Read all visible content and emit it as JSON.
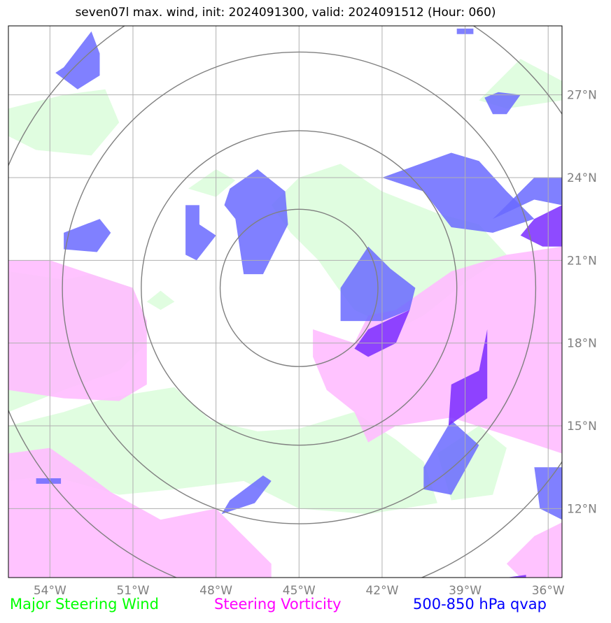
{
  "title": "seven07l max. wind, init: 2024091300, valid: 2024091512 (Hour: 060)",
  "legend": [
    {
      "label": "Major Steering Wind",
      "color": "#00ff00"
    },
    {
      "label": "Steering Vorticity",
      "color": "#ff00ff"
    },
    {
      "label": "500-850 hPa qvap",
      "color": "#0000ff"
    }
  ],
  "chart_data": {
    "type": "map",
    "xlim": [
      -55.5,
      -35.5
    ],
    "ylim": [
      9.5,
      29.5
    ],
    "x_ticks": [
      -54,
      -51,
      -48,
      -45,
      -42,
      -39,
      -36
    ],
    "x_tick_labels": [
      "54°W",
      "51°W",
      "48°W",
      "45°W",
      "42°W",
      "39°W",
      "36°W"
    ],
    "y_ticks": [
      12,
      15,
      18,
      21,
      24,
      27
    ],
    "y_tick_labels": [
      "12°N",
      "15°N",
      "18°N",
      "21°N",
      "24°N",
      "27°N"
    ],
    "grid": true,
    "range_rings": {
      "center": [
        -45.0,
        20.0
      ],
      "radii_deg": [
        2.85,
        5.7,
        8.55,
        11.4
      ]
    },
    "colors": {
      "wind_fill": "#e0fde0",
      "vorticity_fill": "#ffbdff",
      "qvap_fill": "#6a6aff",
      "qvap_dark": "#7a2cff",
      "ring": "#808080",
      "grid": "#b0b0b0",
      "tick_label": "#808080"
    },
    "series": [
      {
        "name": "Major Steering Wind",
        "regions": [
          [
            [
              -55.5,
              26.5
            ],
            [
              -53.5,
              27
            ],
            [
              -52,
              27.2
            ],
            [
              -51.5,
              26
            ],
            [
              -52.5,
              24.8
            ],
            [
              -54.5,
              25
            ],
            [
              -55.5,
              25.5
            ]
          ],
          [
            [
              -38.5,
              26.8
            ],
            [
              -37,
              28.3
            ],
            [
              -35.5,
              27.5
            ],
            [
              -35.5,
              26.8
            ],
            [
              -37.5,
              26.5
            ]
          ],
          [
            [
              -46,
              23
            ],
            [
              -45,
              24
            ],
            [
              -43.5,
              24.5
            ],
            [
              -42,
              23.5
            ],
            [
              -40,
              22.7
            ],
            [
              -38.5,
              22.3
            ],
            [
              -37.5,
              21.2
            ],
            [
              -39,
              20.2
            ],
            [
              -40.5,
              19
            ],
            [
              -41.5,
              18.5
            ],
            [
              -43,
              19.2
            ],
            [
              -43.6,
              20
            ],
            [
              -44.3,
              21
            ],
            [
              -45.3,
              22
            ]
          ],
          [
            [
              -49,
              23.6
            ],
            [
              -48,
              24.3
            ],
            [
              -47.3,
              23.9
            ],
            [
              -48,
              23.3
            ]
          ],
          [
            [
              -50.5,
              19.5
            ],
            [
              -50,
              19.9
            ],
            [
              -49.5,
              19.5
            ],
            [
              -50,
              19.2
            ]
          ],
          [
            [
              -55.5,
              20.6
            ],
            [
              -53.5,
              20.3
            ],
            [
              -52.5,
              20.5
            ],
            [
              -51,
              20
            ],
            [
              -50.5,
              18
            ],
            [
              -51.5,
              17
            ],
            [
              -53.5,
              16.3
            ],
            [
              -55.5,
              15.5
            ]
          ],
          [
            [
              -55.5,
              15
            ],
            [
              -53.5,
              15.5
            ],
            [
              -52,
              16
            ],
            [
              -49.5,
              16.4
            ],
            [
              -48.2,
              15.2
            ],
            [
              -46.5,
              14.8
            ],
            [
              -45,
              14.9
            ],
            [
              -43,
              15.5
            ],
            [
              -41.5,
              14.5
            ],
            [
              -40.5,
              13.7
            ],
            [
              -40,
              12.2
            ],
            [
              -42.5,
              11.8
            ],
            [
              -45,
              12
            ],
            [
              -47,
              13
            ],
            [
              -49.5,
              12.7
            ],
            [
              -51.5,
              12.5
            ],
            [
              -54,
              13.2
            ],
            [
              -55.5,
              13
            ]
          ],
          [
            [
              -40,
              14
            ],
            [
              -38.5,
              15
            ],
            [
              -37.5,
              14.2
            ],
            [
              -38,
              12.5
            ],
            [
              -39.5,
              12.3
            ]
          ]
        ]
      },
      {
        "name": "Steering Vorticity",
        "regions": [
          [
            [
              -55.5,
              21
            ],
            [
              -54,
              21
            ],
            [
              -52.5,
              20.5
            ],
            [
              -51,
              20
            ],
            [
              -50.5,
              18.8
            ],
            [
              -50.5,
              16.5
            ],
            [
              -51.5,
              15.9
            ],
            [
              -53.5,
              16
            ],
            [
              -55.5,
              16.3
            ]
          ],
          [
            [
              -55.5,
              14
            ],
            [
              -54,
              14.2
            ],
            [
              -53,
              13.5
            ],
            [
              -51.8,
              12.6
            ],
            [
              -50,
              11.6
            ],
            [
              -48,
              12
            ],
            [
              -47,
              11
            ],
            [
              -46,
              10
            ],
            [
              -46,
              9.5
            ],
            [
              -55.5,
              9.5
            ]
          ],
          [
            [
              -44.5,
              18.5
            ],
            [
              -43,
              18
            ],
            [
              -42.5,
              19
            ],
            [
              -41.5,
              19.2
            ],
            [
              -39.5,
              20.6
            ],
            [
              -37.5,
              21.2
            ],
            [
              -35.5,
              21.5
            ],
            [
              -35.5,
              14
            ],
            [
              -37,
              14.5
            ],
            [
              -39.5,
              15.3
            ],
            [
              -41.5,
              15
            ],
            [
              -42.5,
              14.4
            ],
            [
              -43,
              15.5
            ],
            [
              -44,
              16.3
            ],
            [
              -44.5,
              17.5
            ]
          ],
          [
            [
              -37.5,
              10
            ],
            [
              -36.5,
              11
            ],
            [
              -35.5,
              11.5
            ],
            [
              -35.5,
              9.5
            ],
            [
              -37,
              9.5
            ]
          ]
        ]
      },
      {
        "name": "500-850 hPa qvap",
        "regions": [
          [
            [
              -53.5,
              28
            ],
            [
              -52.5,
              29.3
            ],
            [
              -52.2,
              28.5
            ],
            [
              -52.2,
              27.7
            ],
            [
              -53,
              27.2
            ],
            [
              -53.8,
              27.8
            ]
          ],
          [
            [
              -38.3,
              26.9
            ],
            [
              -37.8,
              27.1
            ],
            [
              -37,
              27
            ],
            [
              -37.5,
              26.3
            ],
            [
              -38,
              26.3
            ]
          ],
          [
            [
              -39.3,
              29.4
            ],
            [
              -38.7,
              29.4
            ],
            [
              -38.7,
              29.2
            ],
            [
              -39.3,
              29.2
            ]
          ],
          [
            [
              -47.5,
              23.6
            ],
            [
              -46.5,
              24.3
            ],
            [
              -45.5,
              23.5
            ],
            [
              -45.4,
              22.3
            ],
            [
              -46.3,
              20.5
            ],
            [
              -47,
              20.5
            ],
            [
              -47.3,
              22.5
            ],
            [
              -47.7,
              23
            ]
          ],
          [
            [
              -49.1,
              23
            ],
            [
              -48.6,
              23
            ],
            [
              -48.6,
              22.3
            ],
            [
              -48,
              21.9
            ],
            [
              -48.7,
              21
            ],
            [
              -49.1,
              21.2
            ]
          ],
          [
            [
              -53.5,
              22
            ],
            [
              -52.2,
              22.5
            ],
            [
              -51.8,
              22
            ],
            [
              -52.3,
              21.3
            ],
            [
              -53.5,
              21.4
            ]
          ],
          [
            [
              -42.5,
              21.5
            ],
            [
              -41.7,
              20.7
            ],
            [
              -40.8,
              20
            ],
            [
              -41,
              19.2
            ],
            [
              -42,
              18.8
            ],
            [
              -43.5,
              18.8
            ],
            [
              -43.5,
              20
            ]
          ],
          [
            [
              -39.5,
              24.9
            ],
            [
              -38.5,
              24.6
            ],
            [
              -37.5,
              23.5
            ],
            [
              -36.5,
              22.5
            ],
            [
              -38,
              22
            ],
            [
              -39.5,
              22.2
            ],
            [
              -40.5,
              23.5
            ],
            [
              -42,
              24
            ]
          ],
          [
            [
              -38,
              22.5
            ],
            [
              -36.5,
              23.2
            ],
            [
              -35.5,
              23
            ],
            [
              -35.5,
              24
            ],
            [
              -36.5,
              24
            ],
            [
              -37.5,
              23
            ]
          ],
          [
            [
              -40.5,
              13.5
            ],
            [
              -39.5,
              15.2
            ],
            [
              -38.5,
              14.3
            ],
            [
              -39.5,
              12.5
            ],
            [
              -40.5,
              12.7
            ]
          ],
          [
            [
              -47.8,
              11.8
            ],
            [
              -46.6,
              12.2
            ],
            [
              -46,
              13
            ],
            [
              -46.3,
              13.2
            ],
            [
              -47.5,
              12.3
            ]
          ],
          [
            [
              -36.5,
              13.5
            ],
            [
              -35.5,
              13.5
            ],
            [
              -35.5,
              11.6
            ],
            [
              -36.3,
              12
            ]
          ],
          [
            [
              -54.5,
              13.1
            ],
            [
              -53.6,
              13.1
            ],
            [
              -53.6,
              12.9
            ],
            [
              -54.5,
              12.9
            ]
          ]
        ]
      },
      {
        "name": "qvap-dark",
        "regions": [
          [
            [
              -36.5,
              22.5
            ],
            [
              -35.5,
              23
            ],
            [
              -35.5,
              21.5
            ],
            [
              -36.2,
              21.5
            ],
            [
              -37,
              21.9
            ]
          ],
          [
            [
              -42.5,
              18.5
            ],
            [
              -41,
              19.2
            ],
            [
              -41.5,
              18
            ],
            [
              -42.5,
              17.5
            ],
            [
              -43,
              17.8
            ]
          ],
          [
            [
              -39.5,
              16.5
            ],
            [
              -38.5,
              17
            ],
            [
              -38.2,
              18.5
            ],
            [
              -38.2,
              16
            ],
            [
              -39.6,
              15
            ]
          ],
          [
            [
              -37.5,
              9.5
            ],
            [
              -36.8,
              9.6
            ],
            [
              -36.8,
              9.5
            ]
          ]
        ]
      }
    ]
  }
}
